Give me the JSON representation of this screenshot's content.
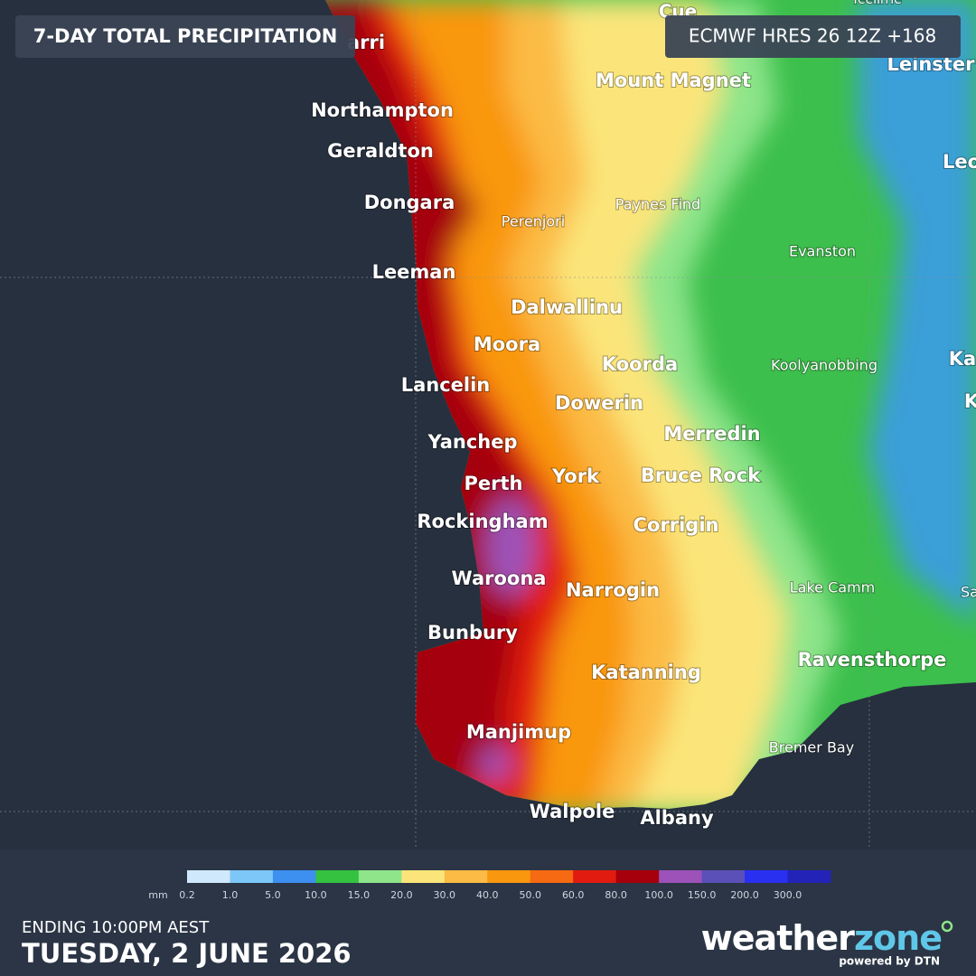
{
  "header": {
    "title": "7-DAY TOTAL PRECIPITATION",
    "model": "ECMWF HRES 26 12Z +168"
  },
  "places": [
    "Cue",
    "Yeelirrie",
    "Leinster",
    "Leo",
    "arri",
    "Mount Magnet",
    "Northampton",
    "Geraldton",
    "Dongara",
    "Perenjori",
    "Paynes Find",
    "Evanston",
    "Leeman",
    "Dalwallinu",
    "Moora",
    "Koorda",
    "Koolyanobbing",
    "Ka",
    "K",
    "Lancelin",
    "Dowerin",
    "Merredin",
    "Yanchep",
    "Perth",
    "York",
    "Bruce Rock",
    "Rockingham",
    "Corrigin",
    "Waroona",
    "Narrogin",
    "Lake Camm",
    "Sa",
    "Bunbury",
    "Ravensthorpe",
    "Katanning",
    "Manjimup",
    "Bremer Bay",
    "Walpole",
    "Albany"
  ],
  "legend": {
    "unit": "mm",
    "ticks": [
      "0.2",
      "1.0",
      "5.0",
      "10.0",
      "15.0",
      "20.0",
      "30.0",
      "40.0",
      "50.0",
      "60.0",
      "80.0",
      "100.0",
      "150.0",
      "200.0",
      "300.0"
    ],
    "colors": [
      "#cfe8fb",
      "#7cc7f7",
      "#3d8ff0",
      "#34c240",
      "#8ee58a",
      "#fbe57a",
      "#fbbb45",
      "#f9970f",
      "#f56a12",
      "#e11b10",
      "#a5000c",
      "#9c52b8",
      "#5b4fb8",
      "#2a30f0",
      "#2323b8"
    ]
  },
  "footer": {
    "ending": "ENDING 10:00PM AEST",
    "date": "TUESDAY, 2 JUNE 2026",
    "brand": "weather",
    "brand_accent": "zone",
    "powered": "powered by DTN"
  }
}
